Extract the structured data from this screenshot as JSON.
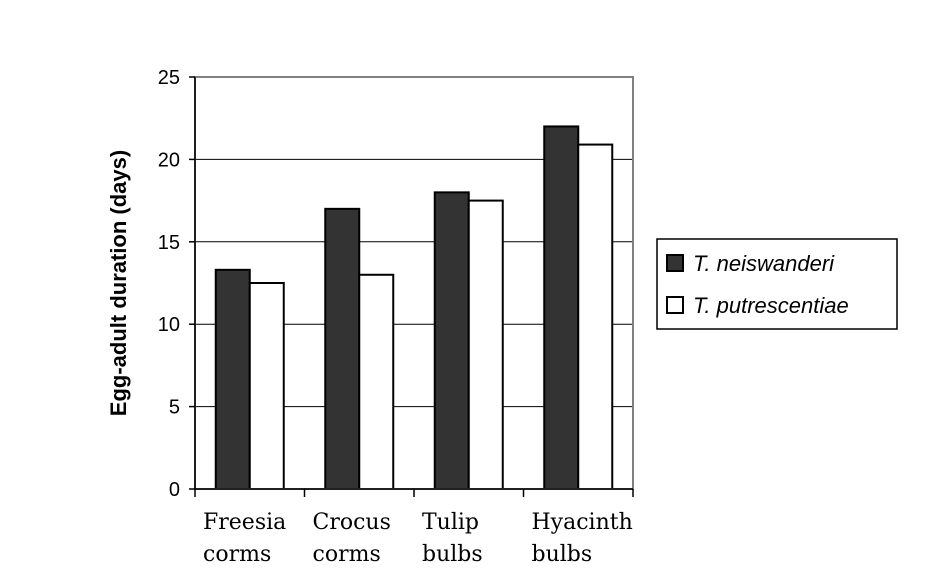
{
  "chart_data": {
    "type": "bar",
    "categories": [
      [
        "Freesia",
        "corms"
      ],
      [
        "Crocus",
        "corms"
      ],
      [
        "Tulip",
        "bulbs"
      ],
      [
        "Hyacinth",
        "bulbs"
      ]
    ],
    "series": [
      {
        "name": "T. neiswanderi",
        "color": "#333333",
        "values": [
          13.3,
          17,
          18,
          22
        ]
      },
      {
        "name": "T. putrescentiae",
        "color": "#ffffff",
        "values": [
          12.5,
          13,
          17.5,
          20.9
        ]
      }
    ],
    "title": "",
    "xlabel": "",
    "ylabel": "Egg-adult duration (days)",
    "ylim": [
      0,
      25
    ],
    "yticks": [
      0,
      5,
      10,
      15,
      20,
      25
    ],
    "grid": true,
    "legend_position": "right"
  }
}
